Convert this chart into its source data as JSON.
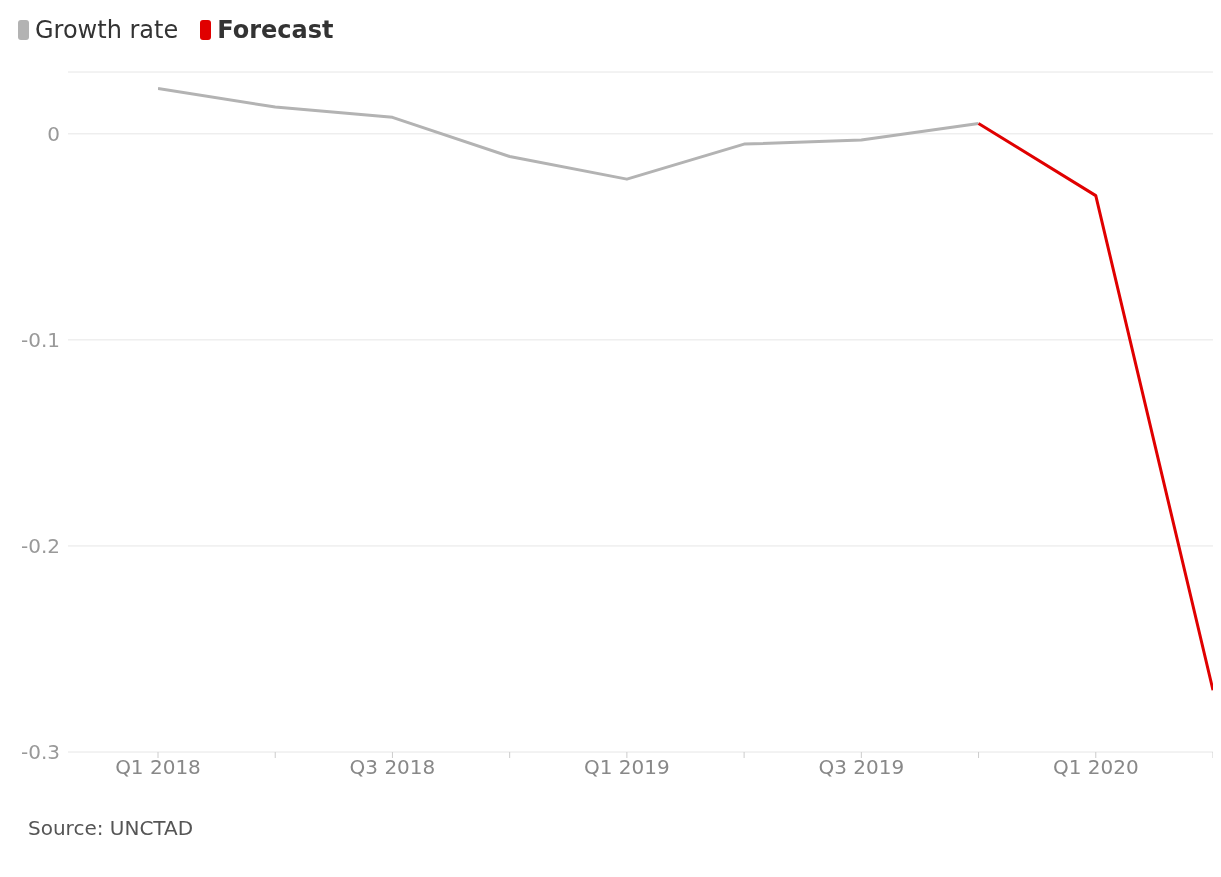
{
  "chart_data": {
    "type": "line",
    "categories": [
      "Q1 2018",
      null,
      "Q3 2018",
      null,
      "Q1 2019",
      null,
      "Q3 2019",
      null,
      "Q1 2020",
      null
    ],
    "series": [
      {
        "name": "Growth rate",
        "color": "#b3b3b3",
        "values": [
          0.022,
          0.013,
          0.008,
          -0.011,
          -0.022,
          -0.005,
          -0.003,
          0.005,
          null,
          null
        ]
      },
      {
        "name": "Forecast",
        "color": "#e00000",
        "values": [
          null,
          null,
          null,
          null,
          null,
          null,
          null,
          0.005,
          -0.03,
          -0.27
        ]
      }
    ],
    "ylim": [
      -0.3,
      0.03
    ],
    "yticks": [
      -0.3,
      -0.2,
      -0.1,
      0
    ],
    "grid": "y",
    "legend": "top left",
    "marker": "none",
    "line_style": "solid",
    "annotations": [
      "Source: UNCTAD"
    ]
  }
}
